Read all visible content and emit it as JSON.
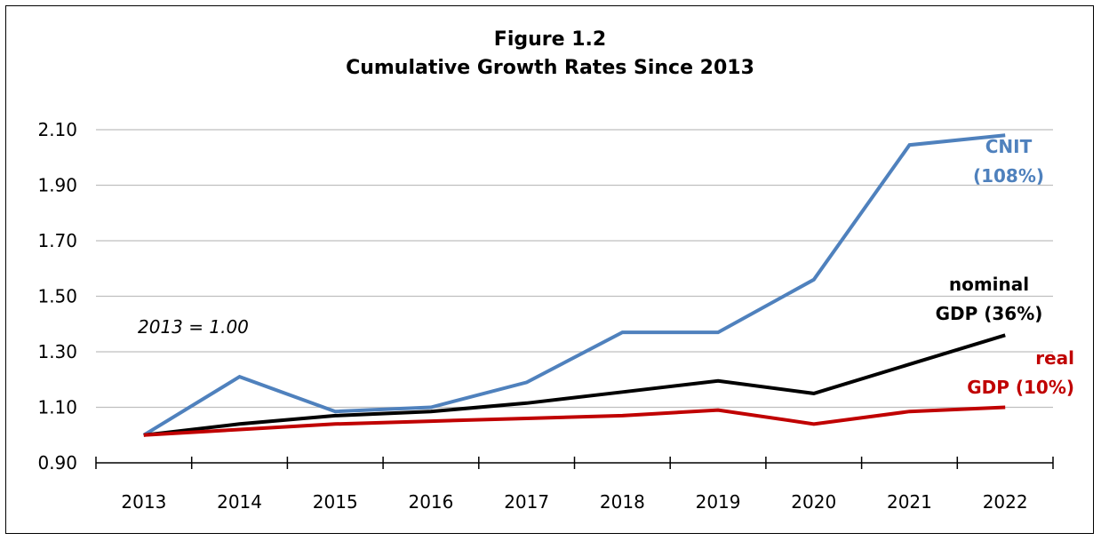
{
  "chart_data": {
    "type": "line",
    "title": "Figure 1.2",
    "subtitle": "Cumulative Growth Rates Since 2013",
    "annotation": "2013 = 1.00",
    "x": [
      "2013",
      "2014",
      "2015",
      "2016",
      "2017",
      "2018",
      "2019",
      "2020",
      "2021",
      "2022"
    ],
    "ylim": [
      0.9,
      2.1
    ],
    "yticks": [
      "0.90",
      "1.10",
      "1.30",
      "1.50",
      "1.70",
      "1.90",
      "2.10"
    ],
    "grid": true,
    "series": [
      {
        "name": "CNIT",
        "label_lines": [
          "CNIT",
          "(108%)"
        ],
        "color": "#4f81bd",
        "values": [
          1.0,
          1.21,
          1.085,
          1.1,
          1.19,
          1.37,
          1.37,
          1.56,
          2.045,
          2.08
        ]
      },
      {
        "name": "nominal GDP",
        "label_lines": [
          "nominal",
          "GDP (36%)"
        ],
        "color": "#000000",
        "values": [
          1.0,
          1.04,
          1.07,
          1.085,
          1.115,
          1.155,
          1.195,
          1.15,
          1.255,
          1.36
        ]
      },
      {
        "name": "real GDP",
        "label_lines": [
          "real",
          "GDP (10%)"
        ],
        "color": "#c00000",
        "values": [
          1.0,
          1.02,
          1.04,
          1.05,
          1.06,
          1.07,
          1.09,
          1.04,
          1.085,
          1.1
        ]
      }
    ]
  }
}
